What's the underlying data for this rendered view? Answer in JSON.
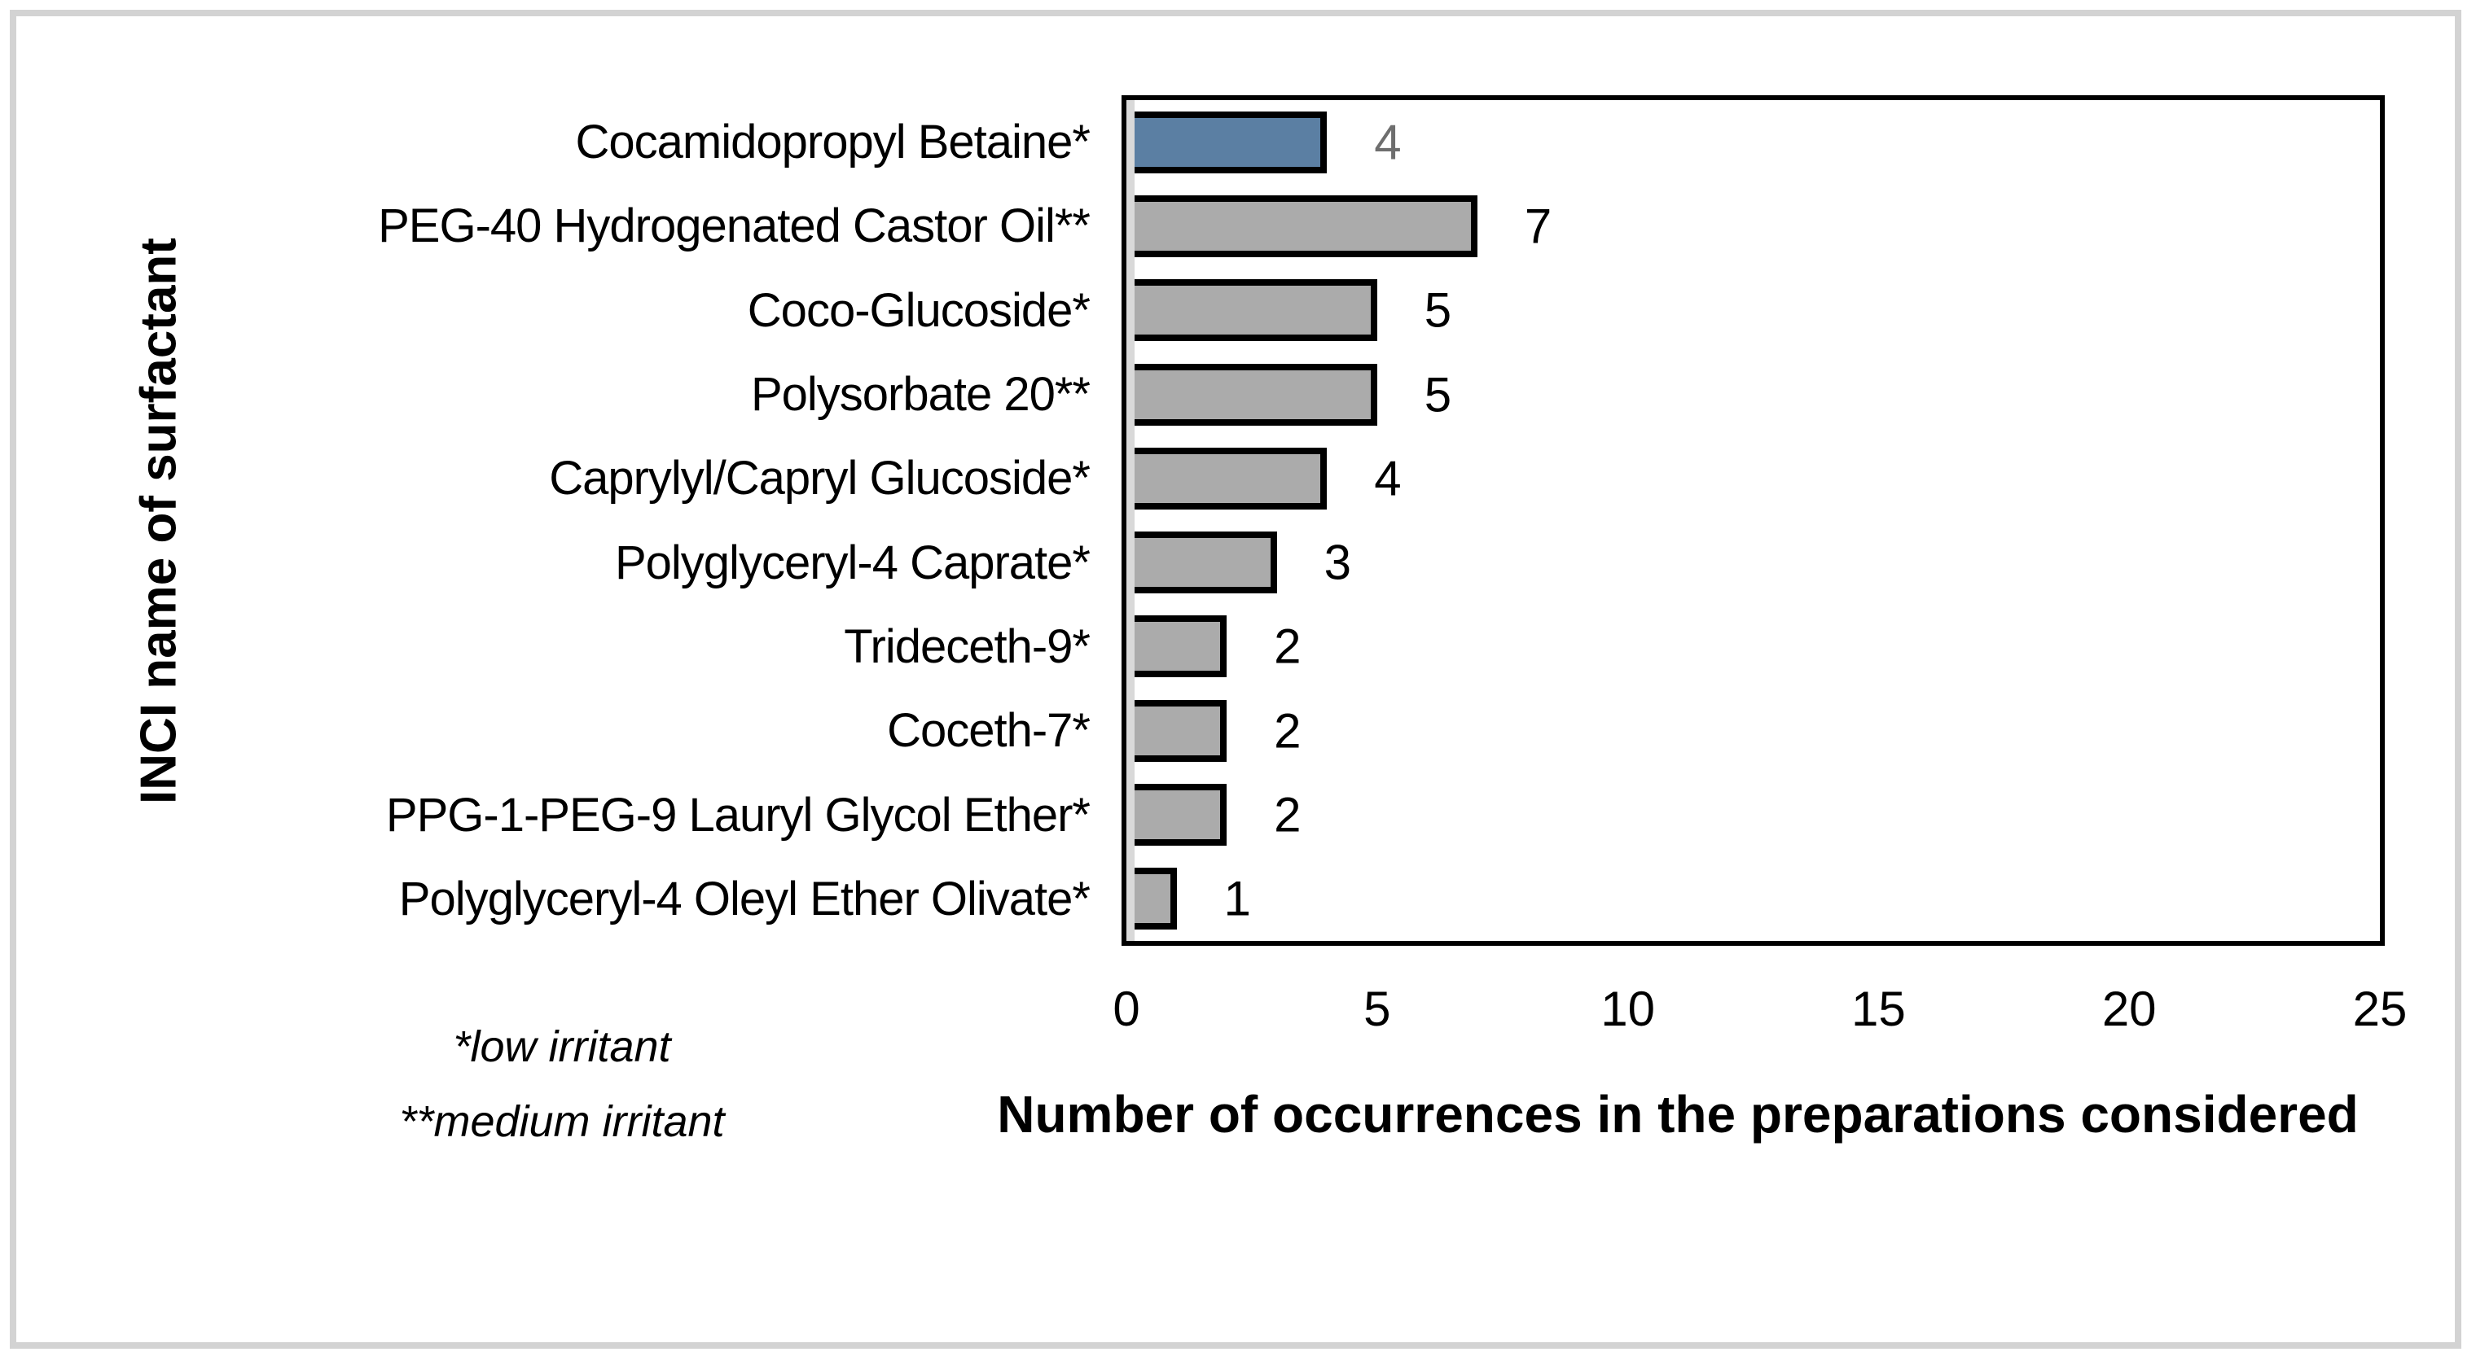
{
  "colors": {
    "background": "#FFFFFF",
    "frame_border": "#D3D3D3",
    "plot_border": "#000000",
    "zero_axis_line": "#D9D9D9",
    "bar_fill_default": "#ABABAB",
    "bar_fill_highlight": "#5B7FA3",
    "bar_outline": "#000000",
    "value_label_default": "#000000",
    "value_label_highlight": "#6E6E6E",
    "text": "#000000"
  },
  "chart_data": {
    "type": "bar",
    "orientation": "horizontal",
    "title": "",
    "xlabel": "Number of occurrences in the preparations considered",
    "ylabel": "INCI name of surfactant",
    "xlim": [
      0,
      25
    ],
    "xticks": [
      0,
      5,
      10,
      15,
      20,
      25
    ],
    "grid": false,
    "legend": false,
    "highlight_index": 0,
    "categories": [
      "Cocamidopropyl Betaine*",
      "PEG-40 Hydrogenated Castor Oil**",
      "Coco-Glucoside*",
      "Polysorbate 20**",
      "Caprylyl/Capryl Glucoside*",
      "Polyglyceryl-4 Caprate*",
      "Trideceth-9*",
      "Coceth-7*",
      "PPG-1-PEG-9 Lauryl Glycol Ether*",
      "Polyglyceryl-4 Oleyl Ether Olivate*"
    ],
    "values": [
      4,
      7,
      5,
      5,
      4,
      3,
      2,
      2,
      2,
      1
    ],
    "footnotes": [
      "*low irritant",
      "**medium irritant"
    ]
  }
}
